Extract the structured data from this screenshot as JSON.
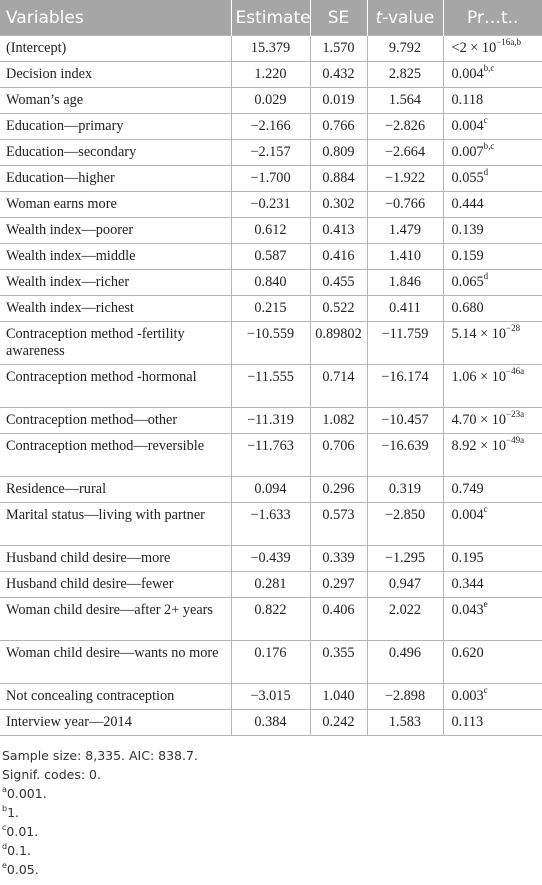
{
  "table": {
    "headers": {
      "variables": "Variables",
      "estimate": "Estimate",
      "se": "SE",
      "tvalue_t": "t",
      "tvalue_rest": "-value",
      "p": "Pr…t.."
    },
    "rows": [
      {
        "variable": "(Intercept)",
        "estimate": "15.379",
        "se": "1.570",
        "t": "9.792",
        "p": "<2 × 10",
        "p_exp": "−16",
        "p_sup": "a,b"
      },
      {
        "variable": "Decision index",
        "estimate": "1.220",
        "se": "0.432",
        "t": "2.825",
        "p": "0.004",
        "p_exp": "",
        "p_sup": "b,c"
      },
      {
        "variable": "Woman’s age",
        "estimate": "0.029",
        "se": "0.019",
        "t": "1.564",
        "p": "0.118",
        "p_exp": "",
        "p_sup": ""
      },
      {
        "variable": "Education—primary",
        "estimate": "−2.166",
        "se": "0.766",
        "t": "−2.826",
        "p": "0.004",
        "p_exp": "",
        "p_sup": "c"
      },
      {
        "variable": "Education—secondary",
        "estimate": "−2.157",
        "se": "0.809",
        "t": "−2.664",
        "p": "0.007",
        "p_exp": "",
        "p_sup": "b,c"
      },
      {
        "variable": "Education—higher",
        "estimate": "−1.700",
        "se": "0.884",
        "t": "−1.922",
        "p": "0.055",
        "p_exp": "",
        "p_sup": "d"
      },
      {
        "variable": "Woman earns more",
        "estimate": "−0.231",
        "se": "0.302",
        "t": "−0.766",
        "p": "0.444",
        "p_exp": "",
        "p_sup": ""
      },
      {
        "variable": "Wealth index—poorer",
        "estimate": "0.612",
        "se": "0.413",
        "t": "1.479",
        "p": "0.139",
        "p_exp": "",
        "p_sup": ""
      },
      {
        "variable": "Wealth index—middle",
        "estimate": "0.587",
        "se": "0.416",
        "t": "1.410",
        "p": "0.159",
        "p_exp": "",
        "p_sup": ""
      },
      {
        "variable": "Wealth index—richer",
        "estimate": "0.840",
        "se": "0.455",
        "t": "1.846",
        "p": "0.065",
        "p_exp": "",
        "p_sup": "d"
      },
      {
        "variable": "Wealth index—richest",
        "estimate": "0.215",
        "se": "0.522",
        "t": "0.411",
        "p": "0.680",
        "p_exp": "",
        "p_sup": ""
      },
      {
        "variable": "Contraception method -fertility awareness",
        "estimate": "−10.559",
        "se": "0.89802",
        "t": "−11.759",
        "p": "5.14 × 10",
        "p_exp": "−28",
        "p_sup": ""
      },
      {
        "variable": "Contraception method -hormonal",
        "estimate": "−11.555",
        "se": "0.714",
        "t": "−16.174",
        "p": "1.06 × 10",
        "p_exp": "−46",
        "p_sup": "a"
      },
      {
        "variable": "Contraception method—other",
        "estimate": "−11.319",
        "se": "1.082",
        "t": "−10.457",
        "p": "4.70 × 10",
        "p_exp": "−23",
        "p_sup": "a"
      },
      {
        "variable": "Contraception method—reversible",
        "estimate": "−11.763",
        "se": "0.706",
        "t": "−16.639",
        "p": "8.92 × 10",
        "p_exp": "−49",
        "p_sup": "a"
      },
      {
        "variable": "Residence—rural",
        "estimate": "0.094",
        "se": "0.296",
        "t": "0.319",
        "p": "0.749",
        "p_exp": "",
        "p_sup": ""
      },
      {
        "variable": "Marital status—living with partner",
        "estimate": "−1.633",
        "se": "0.573",
        "t": "−2.850",
        "p": "0.004",
        "p_exp": "",
        "p_sup": "c"
      },
      {
        "variable": "Husband child desire—more",
        "estimate": "−0.439",
        "se": "0.339",
        "t": "−1.295",
        "p": "0.195",
        "p_exp": "",
        "p_sup": ""
      },
      {
        "variable": "Husband child desire—fewer",
        "estimate": "0.281",
        "se": "0.297",
        "t": "0.947",
        "p": "0.344",
        "p_exp": "",
        "p_sup": ""
      },
      {
        "variable": "Woman child desire—after 2+ years",
        "estimate": "0.822",
        "se": "0.406",
        "t": "2.022",
        "p": "0.043",
        "p_exp": "",
        "p_sup": "e"
      },
      {
        "variable": "Woman child desire—wants no more",
        "estimate": "0.176",
        "se": "0.355",
        "t": "0.496",
        "p": "0.620",
        "p_exp": "",
        "p_sup": ""
      },
      {
        "variable": "Not concealing contraception",
        "estimate": "−3.015",
        "se": "1.040",
        "t": "−2.898",
        "p": "0.003",
        "p_exp": "",
        "p_sup": "c"
      },
      {
        "variable": "Interview year—2014",
        "estimate": "0.384",
        "se": "0.242",
        "t": "1.583",
        "p": "0.113",
        "p_exp": "",
        "p_sup": ""
      }
    ]
  },
  "notes": {
    "sample": "Sample size: 8,335. AIC: 838.7.",
    "signif": "Signif. codes: 0.",
    "footnotes": [
      {
        "mark": "a",
        "text": "0.001."
      },
      {
        "mark": "b",
        "text": "1."
      },
      {
        "mark": "c",
        "text": "0.01."
      },
      {
        "mark": "d",
        "text": "0.1."
      },
      {
        "mark": "e",
        "text": "0.05."
      }
    ]
  },
  "colors": {
    "header_bg": "#a6a6a6",
    "header_text": "#ffffff",
    "grid": "#b5b5b5"
  }
}
